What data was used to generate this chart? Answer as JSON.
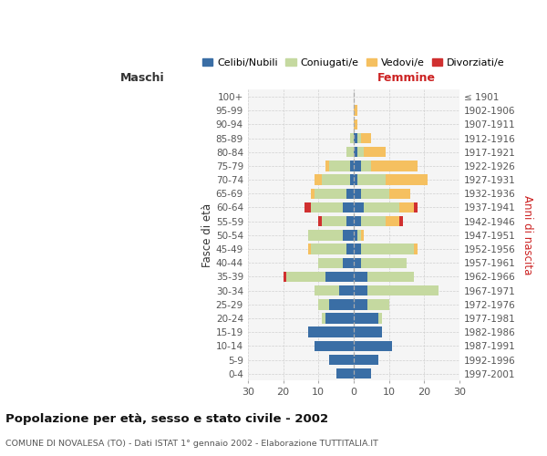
{
  "age_groups": [
    "0-4",
    "5-9",
    "10-14",
    "15-19",
    "20-24",
    "25-29",
    "30-34",
    "35-39",
    "40-44",
    "45-49",
    "50-54",
    "55-59",
    "60-64",
    "65-69",
    "70-74",
    "75-79",
    "80-84",
    "85-89",
    "90-94",
    "95-99",
    "100+"
  ],
  "birth_years": [
    "1997-2001",
    "1992-1996",
    "1987-1991",
    "1982-1986",
    "1977-1981",
    "1972-1976",
    "1967-1971",
    "1962-1966",
    "1957-1961",
    "1952-1956",
    "1947-1951",
    "1942-1946",
    "1937-1941",
    "1932-1936",
    "1927-1931",
    "1922-1926",
    "1917-1921",
    "1912-1916",
    "1907-1911",
    "1902-1906",
    "≤ 1901"
  ],
  "maschi_celibi": [
    5,
    7,
    11,
    13,
    8,
    7,
    4,
    8,
    3,
    2,
    3,
    2,
    3,
    2,
    1,
    1,
    0,
    0,
    0,
    0,
    0
  ],
  "maschi_coniugati": [
    0,
    0,
    0,
    0,
    1,
    3,
    7,
    11,
    7,
    10,
    10,
    7,
    9,
    9,
    8,
    6,
    2,
    1,
    0,
    0,
    0
  ],
  "maschi_vedovi": [
    0,
    0,
    0,
    0,
    0,
    0,
    0,
    0,
    0,
    1,
    0,
    0,
    0,
    1,
    2,
    1,
    0,
    0,
    0,
    0,
    0
  ],
  "maschi_divorziati": [
    0,
    0,
    0,
    0,
    0,
    0,
    0,
    1,
    0,
    0,
    0,
    1,
    2,
    0,
    0,
    0,
    0,
    0,
    0,
    0,
    0
  ],
  "femmine_nubili": [
    5,
    7,
    11,
    8,
    7,
    4,
    4,
    4,
    2,
    2,
    1,
    2,
    3,
    2,
    1,
    2,
    1,
    1,
    0,
    0,
    0
  ],
  "femmine_coniugate": [
    0,
    0,
    0,
    0,
    1,
    6,
    20,
    13,
    13,
    15,
    1,
    7,
    10,
    8,
    8,
    3,
    2,
    1,
    0,
    0,
    0
  ],
  "femmine_vedove": [
    0,
    0,
    0,
    0,
    0,
    0,
    0,
    0,
    0,
    1,
    1,
    4,
    4,
    6,
    12,
    13,
    6,
    3,
    1,
    1,
    0
  ],
  "femmine_divorziate": [
    0,
    0,
    0,
    0,
    0,
    0,
    0,
    0,
    0,
    0,
    0,
    1,
    1,
    0,
    0,
    0,
    0,
    0,
    0,
    0,
    0
  ],
  "color_celibi": "#3A6EA5",
  "color_coniugati": "#C5D9A0",
  "color_vedovi": "#F5C060",
  "color_divorziati": "#D03030",
  "xlim": 30,
  "title": "Popolazione per età, sesso e stato civile - 2002",
  "subtitle": "COMUNE DI NOVALESA (TO) - Dati ISTAT 1° gennaio 2002 - Elaborazione TUTTITALIA.IT",
  "ylabel_left": "Fasce di età",
  "ylabel_right": "Anni di nascita",
  "legend_labels": [
    "Celibi/Nubili",
    "Coniugati/e",
    "Vedovi/e",
    "Divorziati/e"
  ],
  "maschi_label": "Maschi",
  "femmine_label": "Femmine",
  "bg_color": "#f5f5f5",
  "fig_bg": "#ffffff"
}
